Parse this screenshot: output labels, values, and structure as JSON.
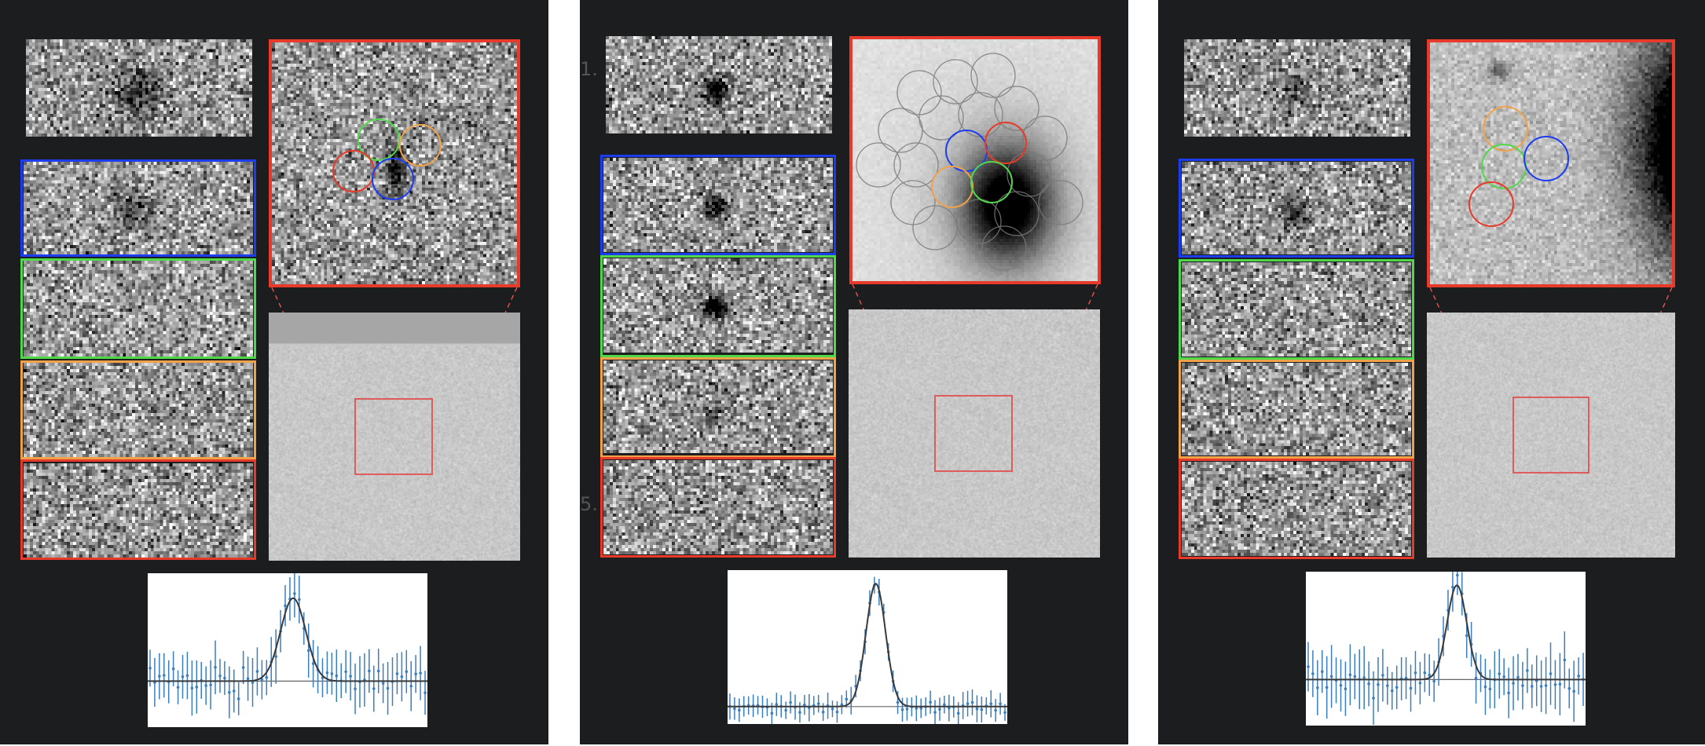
{
  "figure": {
    "panels": [
      {
        "id": "left",
        "edge_labels": []
      },
      {
        "id": "middle",
        "edge_labels": [
          "1.",
          "5."
        ]
      },
      {
        "id": "right",
        "edge_labels": []
      }
    ]
  },
  "colors": {
    "panel_bg": "#1b1d1f",
    "frame_blue": "#1c3cf0",
    "frame_green": "#4fd84a",
    "frame_orange": "#f0a24a",
    "frame_red": "#e83a2a",
    "zoom_box": "#e05050",
    "spectrum_points": "#3a7ebf",
    "spectrum_fit": "#3a3a3a"
  },
  "icons": [
    "dashed-zoom-lines",
    "aperture-circles"
  ]
}
